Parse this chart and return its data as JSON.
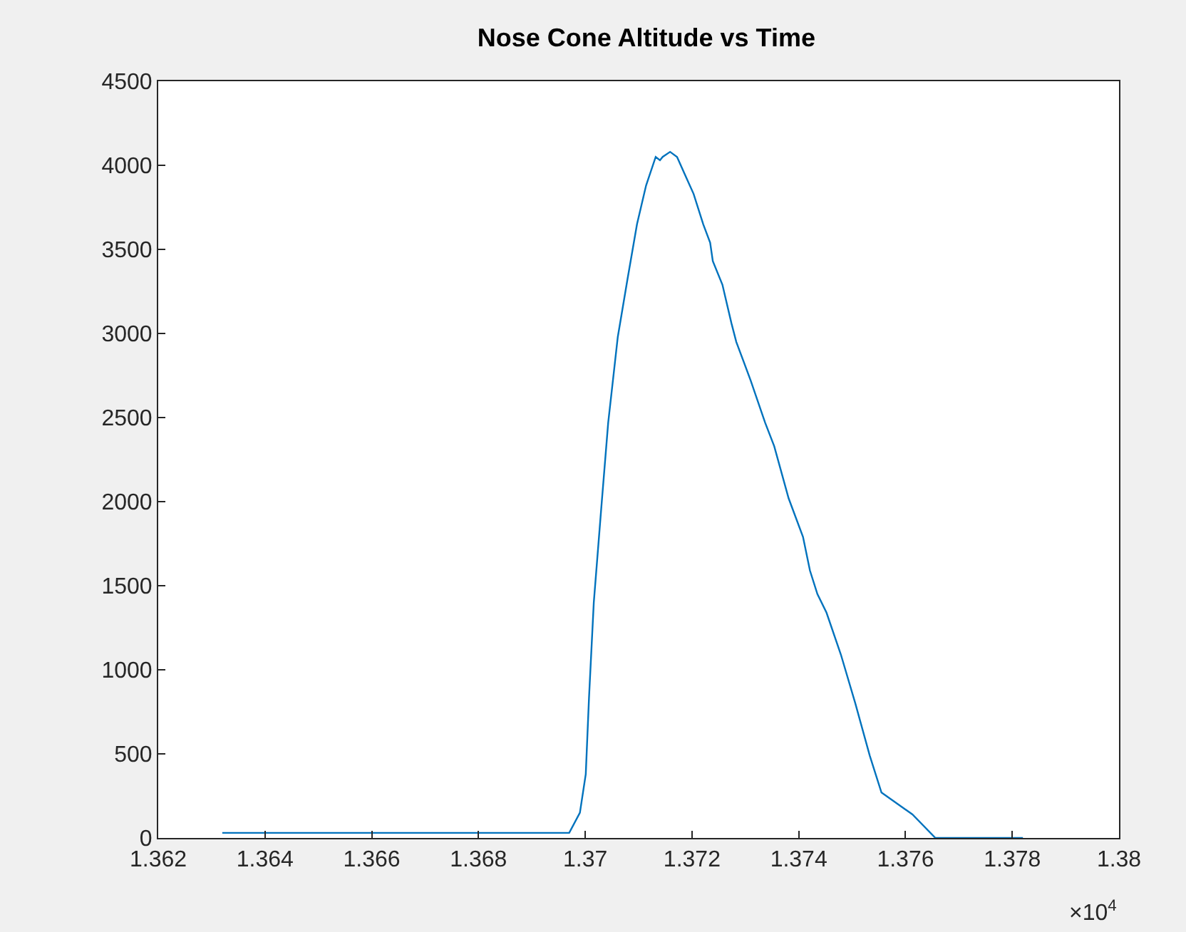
{
  "chart_data": {
    "type": "line",
    "title": "Nose Cone Altitude vs Time",
    "x": [
      1.3632,
      1.3697,
      1.3699,
      1.37001,
      1.37007,
      1.37016,
      1.3703,
      1.37043,
      1.37061,
      1.37079,
      1.37097,
      1.37114,
      1.37132,
      1.3714,
      1.37145,
      1.37159,
      1.37172,
      1.37186,
      1.37203,
      1.37221,
      1.37234,
      1.37239,
      1.37257,
      1.37274,
      1.37283,
      1.3731,
      1.37337,
      1.37354,
      1.37381,
      1.37408,
      1.37421,
      1.37435,
      1.37452,
      1.37479,
      1.37506,
      1.37533,
      1.37555,
      1.37613,
      1.37656,
      1.3782
    ],
    "series": [
      {
        "color": "#0072bd",
        "values": [
          30,
          30,
          150,
          380,
          830,
          1400,
          1960,
          2470,
          2980,
          3320,
          3650,
          3880,
          4050,
          4030,
          4050,
          4080,
          4050,
          3950,
          3830,
          3650,
          3540,
          3430,
          3290,
          3060,
          2950,
          2720,
          2470,
          2330,
          2020,
          1790,
          1590,
          1450,
          1340,
          1090,
          800,
          490,
          270,
          140,
          0,
          0
        ]
      }
    ],
    "xlim": [
      1.362,
      1.38
    ],
    "xticks": [
      1.362,
      1.364,
      1.366,
      1.368,
      1.37,
      1.372,
      1.374,
      1.376,
      1.378,
      1.38
    ],
    "ylim": [
      0,
      4500
    ],
    "yticks": [
      0,
      500,
      1000,
      1500,
      2000,
      2500,
      3000,
      3500,
      4000,
      4500
    ],
    "annotations": [
      "×10$^{4}$"
    ],
    "grid": false,
    "marker": "none",
    "line_style": "solid"
  }
}
